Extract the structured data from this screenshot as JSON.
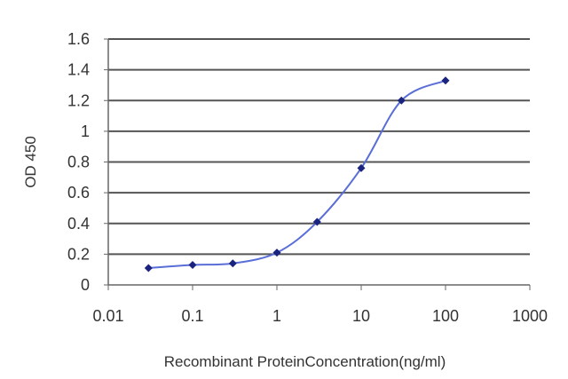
{
  "chart_data": {
    "type": "scatter",
    "xscale": "log",
    "xlim": [
      0.01,
      1000
    ],
    "ylim": [
      0,
      1.6
    ],
    "xlabel": "Recombinant ProteinConcentration(ng/ml)",
    "ylabel": "OD 450",
    "x_ticks": [
      "0.01",
      "0.1",
      "1",
      "10",
      "100",
      "1000"
    ],
    "y_ticks": [
      "0",
      "0.2",
      "0.4",
      "0.6",
      "0.8",
      "1",
      "1.2",
      "1.4",
      "1.6"
    ],
    "grid": "horizontal",
    "legend": "none",
    "series": [
      {
        "x": [
          0.03,
          0.1,
          0.3,
          1,
          3,
          10,
          30,
          100
        ],
        "y": [
          0.11,
          0.13,
          0.14,
          0.21,
          0.41,
          0.76,
          1.2,
          1.33
        ]
      }
    ],
    "colors": {
      "line": "#5a6ed8",
      "marker": "#1a237e",
      "grid": "#555555",
      "axis": "#666666"
    }
  }
}
